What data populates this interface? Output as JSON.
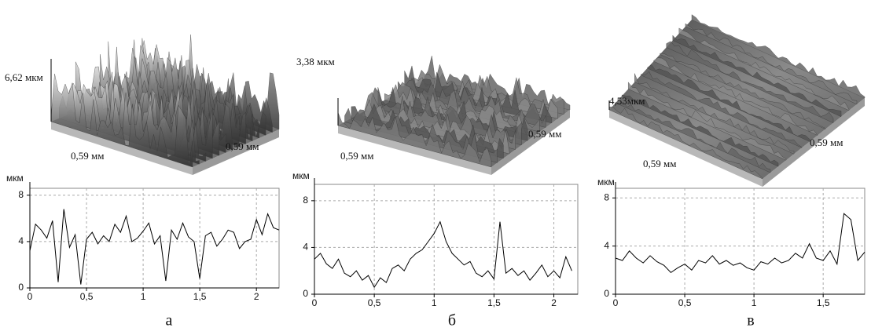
{
  "chart_data": [
    {
      "type": "line",
      "caption": "а",
      "ylabel": "мкм",
      "surface": {
        "height_label": "6,62 мкм",
        "x_label": "0,59 мм",
        "y_label": "0,59 мм"
      },
      "xlim": [
        0,
        2.2
      ],
      "ylim": [
        0,
        8.6
      ],
      "yticks": [
        0,
        4,
        8
      ],
      "xticks": [
        0,
        {
          "value": 0.5,
          "label": "0,5"
        },
        1,
        {
          "value": 1.5,
          "label": "1,5"
        },
        2
      ],
      "grid": true,
      "series": [
        {
          "color": "#000000",
          "x": [
            0,
            0.05,
            0.1,
            0.15,
            0.2,
            0.25,
            0.3,
            0.35,
            0.4,
            0.45,
            0.5,
            0.55,
            0.6,
            0.65,
            0.7,
            0.75,
            0.8,
            0.85,
            0.9,
            0.95,
            1,
            1.05,
            1.1,
            1.15,
            1.2,
            1.25,
            1.3,
            1.35,
            1.4,
            1.45,
            1.5,
            1.55,
            1.6,
            1.65,
            1.7,
            1.75,
            1.8,
            1.85,
            1.9,
            1.95,
            2,
            2.05,
            2.1,
            2.15,
            2.2
          ],
          "values": [
            3.2,
            5.5,
            5.0,
            4.3,
            5.8,
            0.5,
            6.8,
            3.5,
            4.6,
            0.3,
            4.2,
            4.8,
            3.8,
            4.5,
            4.0,
            5.5,
            4.8,
            6.2,
            4.0,
            4.3,
            4.9,
            5.6,
            3.8,
            4.5,
            0.6,
            5.0,
            4.2,
            5.6,
            4.4,
            4.0,
            0.8,
            4.5,
            4.8,
            3.6,
            4.2,
            5.0,
            4.8,
            3.4,
            4.0,
            4.2,
            5.9,
            4.6,
            6.4,
            5.2,
            5.0
          ]
        }
      ]
    },
    {
      "type": "line",
      "caption": "б",
      "ylabel": "мкм",
      "surface": {
        "height_label": "3,38 мкм",
        "x_label": "0,59 мм",
        "y_label": "0,59 мм"
      },
      "xlim": [
        0,
        2.2
      ],
      "ylim": [
        0,
        9.4
      ],
      "yticks": [
        0,
        4,
        8
      ],
      "xticks": [
        0,
        {
          "value": 0.5,
          "label": "0,5"
        },
        1,
        {
          "value": 1.5,
          "label": "1,5"
        },
        2
      ],
      "grid": true,
      "series": [
        {
          "color": "#000000",
          "x": [
            0,
            0.05,
            0.1,
            0.15,
            0.2,
            0.25,
            0.3,
            0.35,
            0.4,
            0.45,
            0.5,
            0.55,
            0.6,
            0.65,
            0.7,
            0.75,
            0.8,
            0.85,
            0.9,
            0.95,
            1,
            1.05,
            1.1,
            1.15,
            1.2,
            1.25,
            1.3,
            1.35,
            1.4,
            1.45,
            1.5,
            1.55,
            1.6,
            1.65,
            1.7,
            1.75,
            1.8,
            1.85,
            1.9,
            1.95,
            2,
            2.05,
            2.1,
            2.15
          ],
          "values": [
            3.0,
            3.5,
            2.6,
            2.2,
            3.0,
            1.8,
            1.5,
            2.0,
            1.2,
            1.6,
            0.6,
            1.4,
            1.0,
            2.2,
            2.5,
            2.0,
            3.0,
            3.5,
            3.8,
            4.5,
            5.2,
            6.2,
            4.5,
            3.5,
            3.0,
            2.5,
            2.8,
            1.8,
            1.5,
            2.0,
            1.3,
            6.2,
            1.8,
            2.2,
            1.6,
            2.0,
            1.2,
            1.8,
            2.5,
            1.5,
            2.0,
            1.4,
            3.2,
            2.0
          ]
        }
      ]
    },
    {
      "type": "line",
      "caption": "в",
      "ylabel": "мкм",
      "surface": {
        "height_label": "4,53мкм",
        "x_label": "0,59 мм",
        "y_label": "0,59 мм"
      },
      "xlim": [
        0,
        1.8
      ],
      "ylim": [
        0,
        8.8
      ],
      "yticks": [
        0,
        4,
        8
      ],
      "xticks": [
        0,
        {
          "value": 0.5,
          "label": "0,5"
        },
        1,
        {
          "value": 1.5,
          "label": "1,5"
        }
      ],
      "grid": true,
      "series": [
        {
          "color": "#000000",
          "x": [
            0,
            0.05,
            0.1,
            0.15,
            0.2,
            0.25,
            0.3,
            0.35,
            0.4,
            0.45,
            0.5,
            0.55,
            0.6,
            0.65,
            0.7,
            0.75,
            0.8,
            0.85,
            0.9,
            0.95,
            1,
            1.05,
            1.1,
            1.15,
            1.2,
            1.25,
            1.3,
            1.35,
            1.4,
            1.45,
            1.5,
            1.55,
            1.6,
            1.65,
            1.7,
            1.75,
            1.8
          ],
          "values": [
            3.0,
            2.8,
            3.6,
            3.0,
            2.6,
            3.2,
            2.7,
            2.4,
            1.8,
            2.2,
            2.5,
            2.0,
            2.8,
            2.6,
            3.2,
            2.5,
            2.8,
            2.4,
            2.6,
            2.2,
            2.0,
            2.7,
            2.5,
            3.0,
            2.6,
            2.8,
            3.4,
            3.0,
            4.2,
            3.0,
            2.8,
            3.6,
            2.5,
            6.7,
            6.2,
            2.8,
            3.5
          ]
        }
      ]
    }
  ]
}
